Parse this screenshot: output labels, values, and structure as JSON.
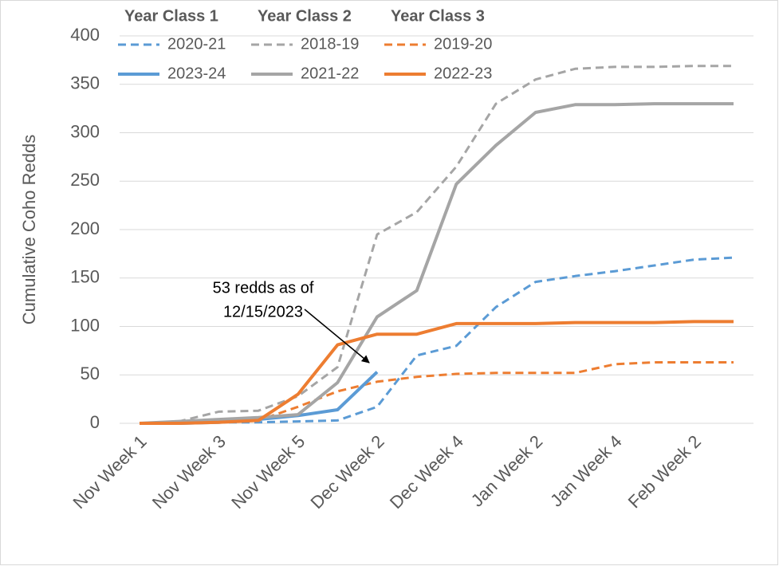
{
  "chart_data": {
    "type": "line",
    "y_label": "Cumulative Coho Redds",
    "categories": [
      "Nov Week 1",
      null,
      "Nov Week 3",
      null,
      "Nov Week 5",
      null,
      "Dec Week 2",
      null,
      "Dec Week 4",
      null,
      "Jan Week 2",
      null,
      "Jan Week 4",
      null,
      "Feb Week 2",
      null
    ],
    "legend_headers": [
      "Year Class 1",
      "Year Class 2",
      "Year Class 3"
    ],
    "series": [
      {
        "name": "2020-21",
        "color": "#5b9bd5",
        "dash": true,
        "values": [
          0,
          0,
          1,
          1,
          2,
          3,
          17,
          70,
          80,
          120,
          146,
          152,
          157,
          163,
          169,
          171
        ]
      },
      {
        "name": "2018-19",
        "color": "#a5a5a5",
        "dash": true,
        "values": [
          0,
          2,
          12,
          13,
          28,
          58,
          195,
          218,
          265,
          330,
          355,
          366,
          368,
          368,
          369,
          369
        ]
      },
      {
        "name": "2019-20",
        "color": "#ed7d31",
        "dash": true,
        "values": [
          0,
          0,
          1,
          3,
          17,
          33,
          43,
          48,
          51,
          52,
          52,
          52,
          61,
          63,
          63,
          63
        ]
      },
      {
        "name": "2023-24",
        "color": "#5b9bd5",
        "dash": false,
        "values": [
          0,
          0,
          1,
          4,
          8,
          14,
          53,
          null,
          null,
          null,
          null,
          null,
          null,
          null,
          null,
          null
        ]
      },
      {
        "name": "2021-22",
        "color": "#a5a5a5",
        "dash": false,
        "values": [
          0,
          2,
          4,
          6,
          9,
          42,
          110,
          137,
          247,
          287,
          321,
          329,
          329,
          330,
          330,
          330
        ]
      },
      {
        "name": "2022-23",
        "color": "#ed7d31",
        "dash": false,
        "values": [
          0,
          0,
          1,
          3,
          30,
          81,
          92,
          92,
          103,
          103,
          103,
          104,
          104,
          104,
          105,
          105
        ]
      }
    ],
    "annotation": [
      "53 redds as of",
      "12/15/2023"
    ],
    "ylim": [
      0,
      400
    ],
    "yticks": [
      0,
      50,
      100,
      150,
      200,
      250,
      300,
      350,
      400
    ],
    "grid": true
  }
}
